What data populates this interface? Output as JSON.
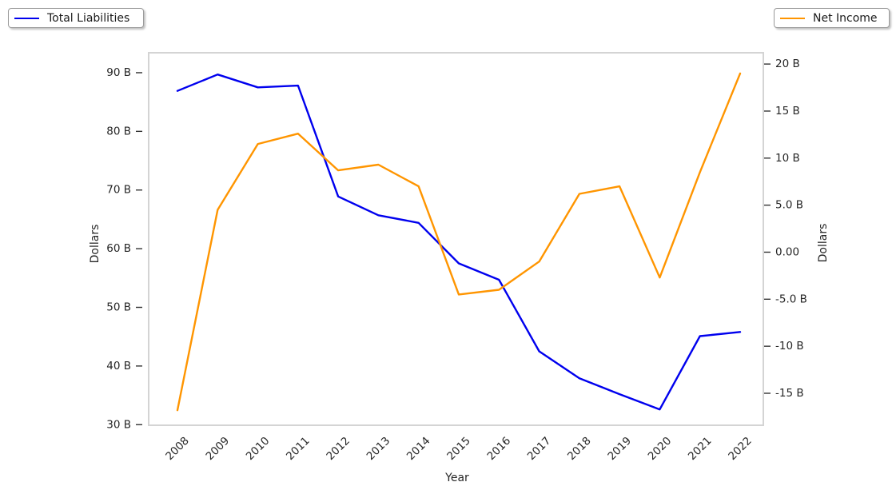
{
  "chart_data": {
    "type": "line",
    "x": [
      "2008",
      "2009",
      "2010",
      "2011",
      "2012",
      "2013",
      "2014",
      "2015",
      "2016",
      "2017",
      "2018",
      "2019",
      "2020",
      "2021",
      "2022"
    ],
    "xlabel": "Year",
    "series": [
      {
        "name": "Total Liabilities",
        "axis": "left",
        "color": "#0000ee",
        "unit": "billions of dollars",
        "values": [
          86.9,
          89.7,
          87.5,
          87.8,
          68.9,
          65.7,
          64.4,
          57.5,
          54.7,
          42.5,
          37.9,
          35.2,
          32.6,
          45.1,
          45.8
        ]
      },
      {
        "name": "Net Income",
        "axis": "right",
        "color": "#ff9500",
        "unit": "billions of dollars",
        "values": [
          -16.8,
          4.5,
          11.5,
          12.6,
          8.7,
          9.3,
          7.0,
          -4.5,
          -4.0,
          -1.0,
          6.2,
          7.0,
          -2.7,
          8.5,
          19.0
        ]
      }
    ],
    "left_axis": {
      "label": "Dollars",
      "ticks": [
        30,
        40,
        50,
        60,
        70,
        80,
        90
      ],
      "tick_labels": [
        "30 B",
        "40 B",
        "50 B",
        "60 B",
        "70 B",
        "80 B",
        "90 B"
      ],
      "range": [
        29.9,
        93.4
      ]
    },
    "right_axis": {
      "label": "Dollars",
      "ticks": [
        -15,
        -10,
        -5,
        0,
        5,
        10,
        15,
        20
      ],
      "tick_labels": [
        "-15 B",
        "-10 B",
        "-5.0 B",
        "0.00",
        "5.0 B",
        "10 B",
        "15 B",
        "20 B"
      ],
      "range": [
        -18.4,
        21.2
      ]
    },
    "legends": [
      {
        "label": "Total Liabilities",
        "color": "#0000ee",
        "position": "top-left"
      },
      {
        "label": "Net Income",
        "color": "#ff9500",
        "position": "top-right"
      }
    ],
    "grid": false,
    "background": "#ffffff"
  }
}
